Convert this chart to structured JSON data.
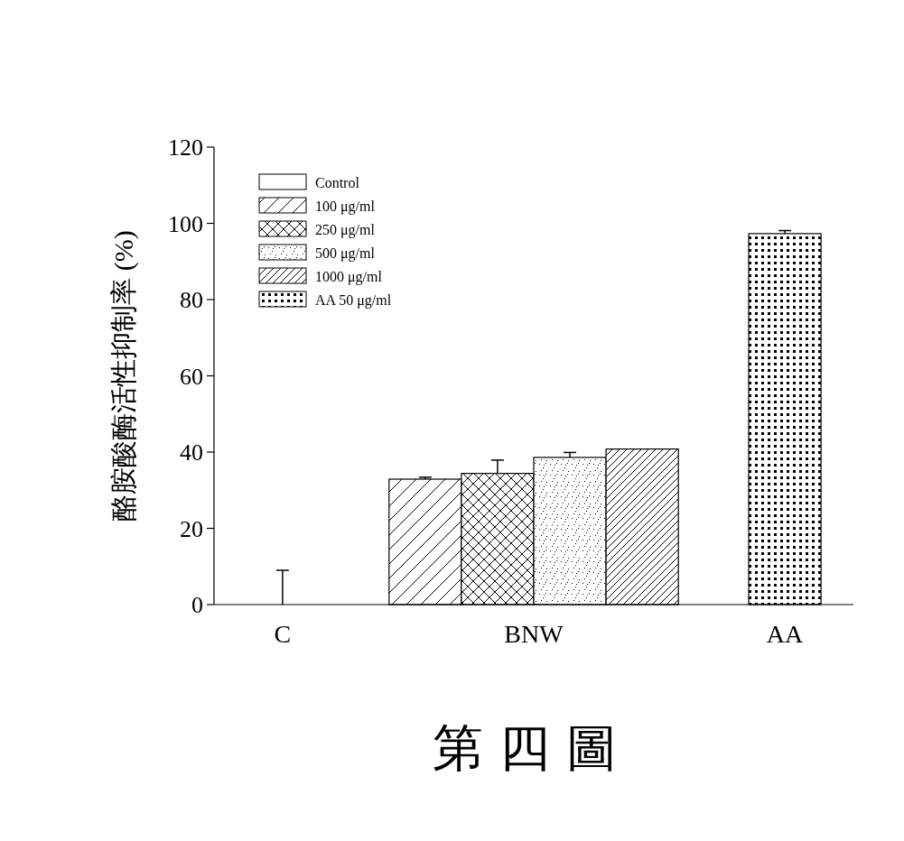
{
  "chart_data": {
    "type": "bar",
    "ylabel": "酪胺酸酶活性抑制率 (%)",
    "categories": [
      "C",
      "BNW",
      "AA"
    ],
    "series": [
      {
        "name": "Control",
        "color": "#ffffff",
        "values": [
          0,
          null,
          null
        ],
        "errors": [
          9,
          null,
          null
        ]
      },
      {
        "name": "100 μg/ml",
        "color": "#000000",
        "values": [
          null,
          32.9,
          null
        ],
        "errors": [
          null,
          0.5,
          null
        ]
      },
      {
        "name": "250 μg/ml",
        "color": "#000000",
        "values": [
          null,
          34.4,
          null
        ],
        "errors": [
          null,
          3.5,
          null
        ]
      },
      {
        "name": "500 μg/ml",
        "color": "#000000",
        "values": [
          null,
          38.6,
          null
        ],
        "errors": [
          null,
          1.3,
          null
        ]
      },
      {
        "name": "1000 μg/ml",
        "color": "#000000",
        "values": [
          null,
          40.8,
          null
        ],
        "errors": [
          null,
          null,
          null
        ]
      },
      {
        "name": "AA 50 μg/ml",
        "color": "#000000",
        "values": [
          null,
          null,
          97.3
        ],
        "errors": [
          null,
          null,
          0.8
        ]
      }
    ],
    "ylim": [
      0,
      120
    ],
    "yticks": [
      0,
      20,
      40,
      60,
      80,
      100,
      120
    ],
    "grid": false,
    "legend": "top left",
    "annotations": [
      "第 四 圖"
    ]
  }
}
